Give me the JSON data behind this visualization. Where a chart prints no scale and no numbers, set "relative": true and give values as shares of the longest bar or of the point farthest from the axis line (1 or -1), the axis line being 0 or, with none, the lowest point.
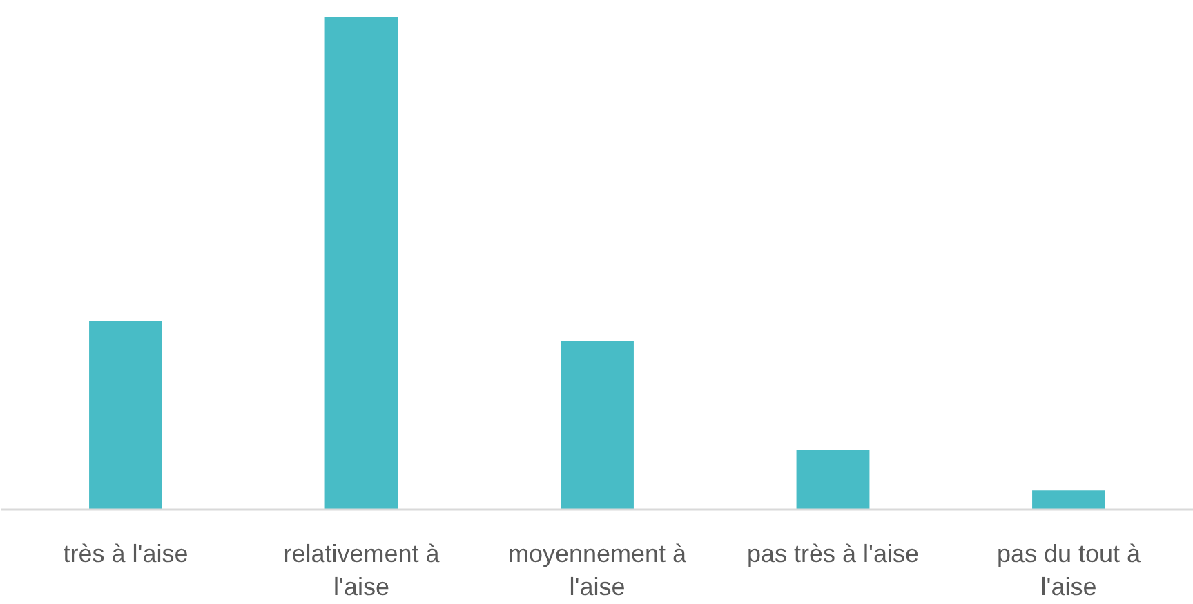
{
  "chart_data": {
    "type": "bar",
    "relative": true,
    "categories": [
      "très à l'aise",
      "relativement à l'aise",
      "moyennement à l'aise",
      "pas très à l'aise",
      "pas du tout à l'aise"
    ],
    "values": [
      0.383,
      1,
      0.342,
      0.121,
      0.039
    ],
    "color": "#48bcc6",
    "grid": false
  }
}
